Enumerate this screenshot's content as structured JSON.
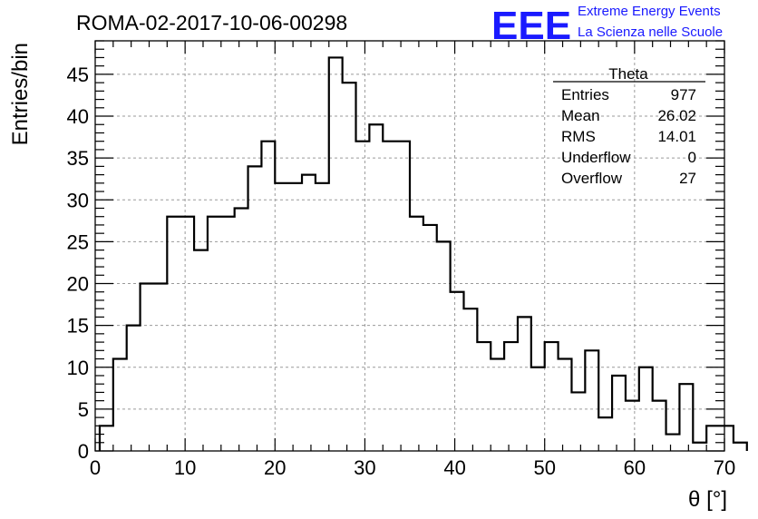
{
  "header": {
    "title": "ROMA-02-2017-10-06-00298",
    "logo_text": "EEE",
    "brand_line1": "Extreme Energy Events",
    "brand_line2": "La Scienza nelle Scuole",
    "brand_color": "#1a1aff"
  },
  "stats_box": {
    "name": "Theta",
    "rows": [
      {
        "label": "Entries",
        "value": "977"
      },
      {
        "label": "Mean",
        "value": "26.02"
      },
      {
        "label": "RMS",
        "value": "14.01"
      },
      {
        "label": "Underflow",
        "value": "0"
      },
      {
        "label": "Overflow",
        "value": "27"
      }
    ]
  },
  "chart_data": {
    "type": "histogram",
    "xlabel": "θ [°]",
    "ylabel": "Entries/bin",
    "xlim": [
      0,
      70
    ],
    "ylim": [
      0,
      49
    ],
    "grid": true,
    "x_ticks": [
      0,
      10,
      20,
      30,
      40,
      50,
      60,
      70
    ],
    "y_ticks": [
      0,
      5,
      10,
      15,
      20,
      25,
      30,
      35,
      40,
      45
    ],
    "bin_edges_start": 0.5,
    "bin_width": 1.5,
    "bin_values": [
      3,
      11,
      15,
      20,
      20,
      28,
      28,
      24,
      28,
      28,
      29,
      34,
      37,
      32,
      32,
      33,
      32,
      47,
      44,
      37,
      39,
      37,
      37,
      28,
      27,
      25,
      19,
      17,
      13,
      11,
      13,
      16,
      10,
      13,
      11,
      7,
      12,
      4,
      9,
      6,
      10,
      6,
      2,
      8,
      1,
      3,
      3,
      1
    ]
  }
}
